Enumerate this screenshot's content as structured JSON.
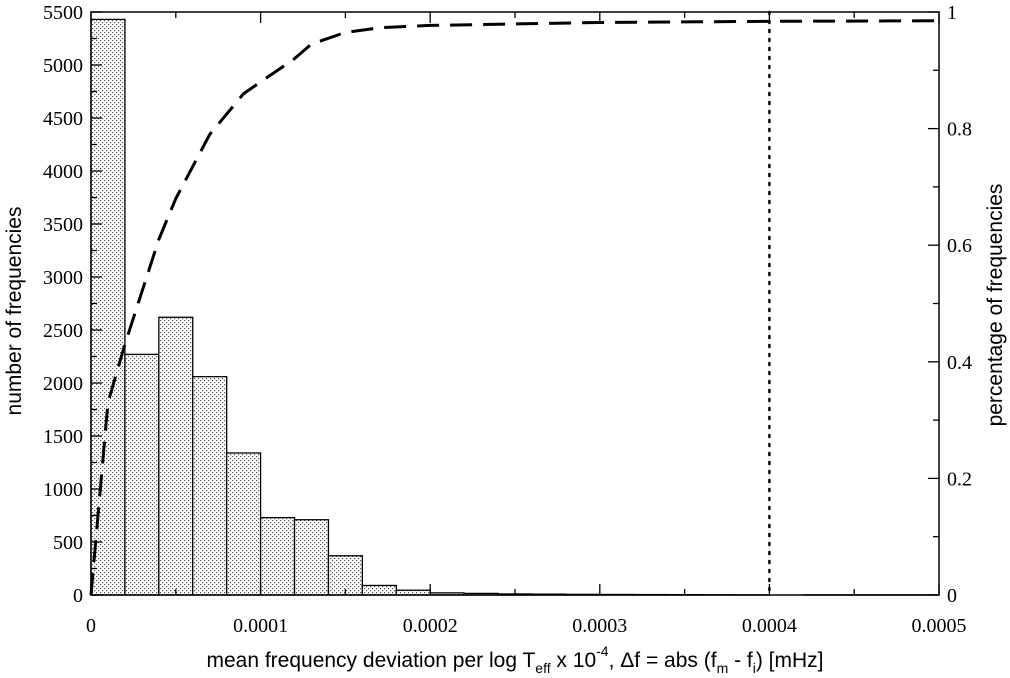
{
  "chart_data": {
    "type": "bar",
    "title": "",
    "xlabel": {
      "parts": [
        "mean frequency deviation per log T",
        "eff",
        " x 10",
        "-4",
        ", Δf = abs (f",
        "m",
        " - f",
        "i",
        ") [mHz]"
      ]
    },
    "ylabel": "number of frequencies",
    "y2label": "percentage of frequencies",
    "xlim": [
      0,
      0.0005
    ],
    "ylim": [
      0,
      5500
    ],
    "y2lim": [
      0,
      1
    ],
    "x_ticks": [
      0,
      0.0001,
      0.0002,
      0.0003,
      0.0004,
      0.0005
    ],
    "x_tick_labels": [
      "0",
      "0.0001",
      "0.0002",
      "0.0003",
      "0.0004",
      "0.0005"
    ],
    "y_ticks": [
      0,
      500,
      1000,
      1500,
      2000,
      2500,
      3000,
      3500,
      4000,
      4500,
      5000,
      5500
    ],
    "y_tick_labels": [
      "0",
      "500",
      "1000",
      "1500",
      "2000",
      "2500",
      "3000",
      "3500",
      "4000",
      "4500",
      "5000",
      "5500"
    ],
    "y2_ticks": [
      0,
      0.2,
      0.4,
      0.6,
      0.8,
      1
    ],
    "y2_tick_labels": [
      "0",
      "0.2",
      "0.4",
      "0.6",
      "0.8",
      "1"
    ],
    "grid": false,
    "histogram": {
      "bin_width": 2e-05,
      "bin_starts": [
        0,
        2e-05,
        4e-05,
        6e-05,
        8e-05,
        0.0001,
        0.00012,
        0.00014,
        0.00016,
        0.00018,
        0.0002,
        0.00022,
        0.00024,
        0.00026,
        0.00028,
        0.0003,
        0.00032,
        0.00034,
        0.00036,
        0.00038,
        0.0004,
        0.00042,
        0.00044,
        0.00046,
        0.00048
      ],
      "values": [
        5430,
        2270,
        2620,
        2060,
        1340,
        730,
        710,
        370,
        90,
        45,
        20,
        15,
        10,
        8,
        6,
        5,
        4,
        3,
        2,
        1,
        0,
        1,
        1,
        1,
        1
      ]
    },
    "cumulative": {
      "style": "dashed",
      "axis": "right",
      "x": [
        0,
        1e-05,
        2e-05,
        3e-05,
        4e-05,
        5e-05,
        7e-05,
        9e-05,
        0.0001,
        0.00012,
        0.00013,
        0.00015,
        0.00017,
        0.0002,
        0.0003,
        0.0004,
        0.0005
      ],
      "y": [
        0,
        0.33,
        0.43,
        0.52,
        0.61,
        0.68,
        0.79,
        0.86,
        0.88,
        0.92,
        0.945,
        0.965,
        0.973,
        0.977,
        0.982,
        0.984,
        0.985
      ]
    },
    "reference_line": {
      "x": 0.0004,
      "style": "dotted"
    }
  }
}
